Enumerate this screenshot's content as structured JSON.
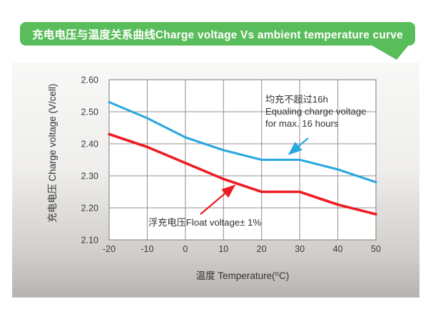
{
  "banner": {
    "title": "充电电压与温度关系曲线Charge voltage Vs ambient temperature curve"
  },
  "colors": {
    "banner_green": "#5abd5b",
    "equalize_blue": "#29a8e0",
    "float_red": "#ed1c24",
    "grid_gray": "#8f8f8f",
    "text_dark": "#3a3a3a"
  },
  "chart_data": {
    "type": "line",
    "title": "充电电压与温度关系曲线Charge voltage Vs ambient temperature curve",
    "xlabel": "温度 Temperature(⁰C)",
    "ylabel": "充电电压 Charge voltage (V/cell)",
    "x": [
      -20,
      -10,
      0,
      10,
      20,
      30,
      40,
      50
    ],
    "xlim": [
      -20,
      50
    ],
    "ylim": [
      2.1,
      2.6
    ],
    "x_ticks": [
      "-20",
      "-10",
      "0",
      "10",
      "20",
      "30",
      "40",
      "50"
    ],
    "y_ticks": [
      "2.60",
      "2.50",
      "2.40",
      "2.30",
      "2.20",
      "2.10"
    ],
    "grid": true,
    "legend_position": "none",
    "series": [
      {
        "name": "均充不超过16h Equaling charge voltage for max. 16 hours",
        "color_key": "equalize_blue",
        "values": [
          2.53,
          2.48,
          2.42,
          2.38,
          2.35,
          2.35,
          2.32,
          2.28
        ]
      },
      {
        "name": "浮充电压Float voltage± 1%",
        "color_key": "float_red",
        "values": [
          2.43,
          2.39,
          2.34,
          2.29,
          2.25,
          2.25,
          2.21,
          2.18
        ]
      }
    ],
    "annotations": [
      {
        "id": "equalize-note",
        "lines": [
          "均充不超过16h",
          "Equaling charge voltage",
          "for max. 16 hours"
        ]
      },
      {
        "id": "float-note",
        "lines": [
          "浮充电压Float voltage± 1%"
        ]
      }
    ]
  }
}
